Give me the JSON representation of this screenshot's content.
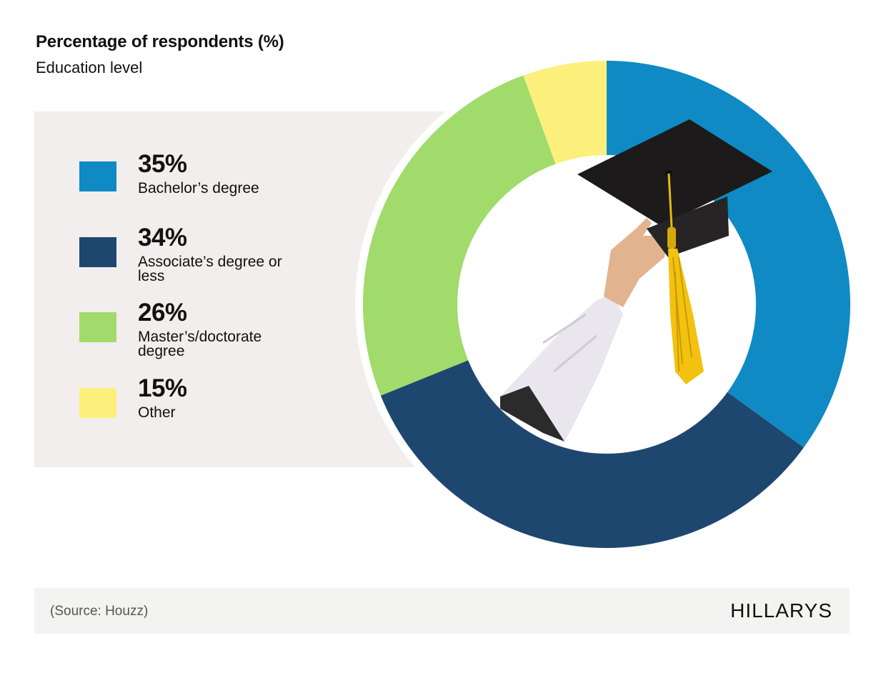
{
  "header": {
    "title": "Percentage of respondents (%)",
    "subtitle": "Education level"
  },
  "legend": [
    {
      "pct": "35%",
      "label": "Bachelor’s degree",
      "color": "#0f8ac4"
    },
    {
      "pct": "34%",
      "label": "Associate’s degree or less",
      "color": "#1e4770"
    },
    {
      "pct": "26%",
      "label": "Master’s/doctorate degree",
      "color": "#a0db6b"
    },
    {
      "pct": "15%",
      "label": "Other",
      "color": "#fdef7c"
    }
  ],
  "footer": {
    "source": "(Source: Houzz)",
    "brand": "HILLARYS"
  },
  "center_image": "graduation-cap-held-by-hand",
  "chart_data": {
    "type": "pie",
    "variant": "donut",
    "title": "Percentage of respondents (%)",
    "subtitle": "Education level",
    "categories": [
      "Bachelor’s degree",
      "Associate’s degree or less",
      "Master’s/doctorate degree",
      "Other"
    ],
    "values": [
      35,
      34,
      26,
      15
    ],
    "colors": [
      "#0f8ac4",
      "#1e4770",
      "#a0db6b",
      "#fdef7c"
    ],
    "unit": "%",
    "legend_position": "left",
    "source": "(Source: Houzz)"
  }
}
